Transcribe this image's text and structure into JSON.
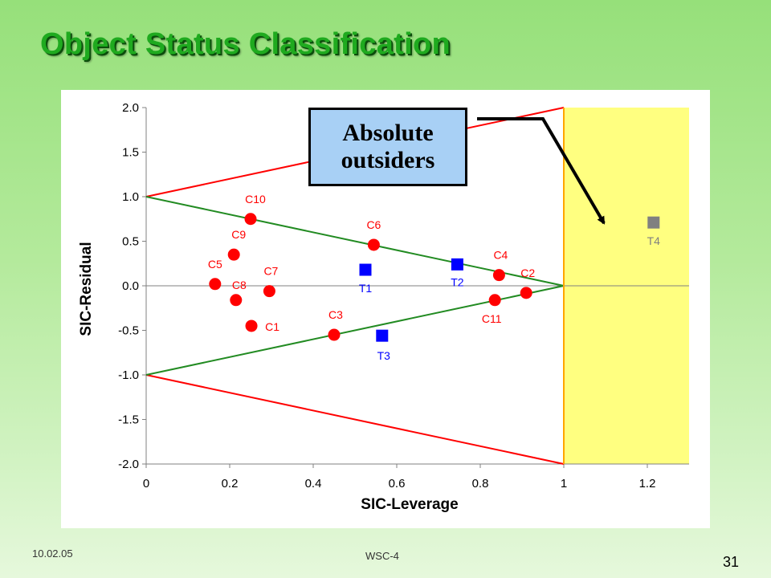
{
  "slide": {
    "title": "Object Status Classification",
    "callout": "Absolute\noutsiders",
    "footer_date": "10.02.05",
    "footer_label": "WSC-4",
    "page_number": "31"
  },
  "colors": {
    "calibration": "#ff0000",
    "test": "#0000ff",
    "outsider": "#808080",
    "warning_lines": "#228B22",
    "limit_lines": "#ff0000",
    "leverage_limit": "#ffa500",
    "outsider_zone": "#ffff80"
  },
  "chart_data": {
    "type": "scatter",
    "xlabel": "SIC-Leverage",
    "ylabel": "SIC-Residual",
    "xlim": [
      0,
      1.3
    ],
    "ylim": [
      -2.0,
      2.0
    ],
    "x_ticks": [
      0,
      0.2,
      0.4,
      0.6,
      0.8,
      1,
      1.2
    ],
    "x_tick_labels": [
      "0",
      "0.2",
      "0.4",
      "0.6",
      "0.8",
      "1",
      "1.2"
    ],
    "y_ticks": [
      2.0,
      1.5,
      1.0,
      0.5,
      0.0,
      -0.5,
      -1.0,
      -1.5,
      -2.0
    ],
    "y_tick_labels": [
      "2.0",
      "1.5",
      "1.0",
      "0.5",
      "0.0",
      "-0.5",
      "-1.0",
      "-1.5",
      "-2.0"
    ],
    "grid": false,
    "boundary_lines": [
      {
        "points": [
          [
            0,
            1
          ],
          [
            1,
            2
          ]
        ],
        "color": "#ff0000"
      },
      {
        "points": [
          [
            0,
            -1
          ],
          [
            1,
            -2
          ]
        ],
        "color": "#ff0000"
      },
      {
        "points": [
          [
            0,
            1
          ],
          [
            1,
            0
          ]
        ],
        "color": "#228B22"
      },
      {
        "points": [
          [
            0,
            -1
          ],
          [
            1,
            0
          ]
        ],
        "color": "#228B22"
      }
    ],
    "vertical_line": {
      "x": 1,
      "color": "#ffa500"
    },
    "shaded_region": {
      "x": [
        1,
        1.3
      ],
      "y": [
        -2.0,
        2.0
      ],
      "color": "#ffff80"
    },
    "series": [
      {
        "name": "",
        "marker": "circle",
        "color": "#ff0000",
        "points": [
          {
            "label": "C10",
            "x": 0.25,
            "y": 0.75
          },
          {
            "label": "C9",
            "x": 0.21,
            "y": 0.35
          },
          {
            "label": "C5",
            "x": 0.165,
            "y": 0.02
          },
          {
            "label": "C8",
            "x": 0.215,
            "y": -0.16
          },
          {
            "label": "C7",
            "x": 0.295,
            "y": -0.06
          },
          {
            "label": "C1",
            "x": 0.252,
            "y": -0.45
          },
          {
            "label": "C6",
            "x": 0.545,
            "y": 0.46
          },
          {
            "label": "C3",
            "x": 0.45,
            "y": -0.55
          },
          {
            "label": "C4",
            "x": 0.845,
            "y": 0.12
          },
          {
            "label": "C2",
            "x": 0.91,
            "y": -0.08
          },
          {
            "label": "C11",
            "x": 0.835,
            "y": -0.16
          }
        ]
      },
      {
        "name": "",
        "marker": "square",
        "color": "#0000ff",
        "points": [
          {
            "label": "T1",
            "x": 0.525,
            "y": 0.18
          },
          {
            "label": "T2",
            "x": 0.745,
            "y": 0.24
          },
          {
            "label": "T3",
            "x": 0.565,
            "y": -0.56
          }
        ]
      },
      {
        "name": "",
        "marker": "square",
        "color": "#808080",
        "points": [
          {
            "label": "T4",
            "x": 1.215,
            "y": 0.71
          }
        ]
      }
    ]
  }
}
